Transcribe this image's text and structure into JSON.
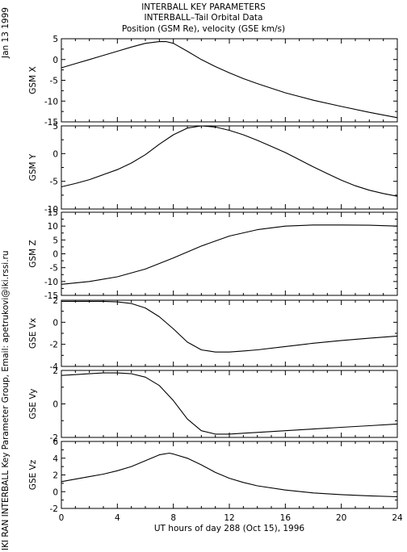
{
  "header": {
    "line1": "INTERBALL KEY PARAMETERS",
    "line2": "INTERBALL–Tail Orbital Data",
    "line3": "Position (GSM Re), velocity (GSE km/s)"
  },
  "side_labels": {
    "date": "Jan 13 1999",
    "credit": "IKI RAN INTERBALL Key Parameter Group, Email: apetrukovi@iki.rssi.ru"
  },
  "chart_data": {
    "type": "line",
    "xlabel": "UT hours of day 288 (Oct 15), 1996",
    "xlim": [
      0,
      24
    ],
    "xticks": [
      0,
      4,
      8,
      12,
      16,
      20,
      24
    ],
    "panels": [
      {
        "ylabel": "GSM X",
        "ylim": [
          -15,
          5
        ],
        "yticks": [
          5,
          0,
          -5,
          -10,
          -15
        ],
        "x": [
          0,
          1,
          2,
          3,
          4,
          5,
          6,
          7,
          7.5,
          8,
          9,
          10,
          11,
          12,
          13,
          14,
          16,
          18,
          20,
          22,
          24
        ],
        "y": [
          -2.0,
          -1.0,
          0.0,
          1.0,
          2.0,
          3.0,
          3.9,
          4.3,
          4.3,
          3.9,
          2.0,
          0.0,
          -1.7,
          -3.2,
          -4.6,
          -5.8,
          -8.0,
          -9.8,
          -11.3,
          -12.7,
          -14.0
        ]
      },
      {
        "ylabel": "GSM Y",
        "ylim": [
          -10,
          5
        ],
        "yticks": [
          5,
          0,
          -5,
          -10
        ],
        "x": [
          0,
          1,
          2,
          3,
          4,
          5,
          6,
          7,
          8,
          9,
          10,
          11,
          12,
          13,
          14,
          15,
          16,
          17,
          18,
          19,
          20,
          21,
          22,
          23,
          24
        ],
        "y": [
          -6.0,
          -5.4,
          -4.7,
          -3.8,
          -2.9,
          -1.7,
          -0.2,
          1.7,
          3.4,
          4.6,
          5.0,
          4.8,
          4.2,
          3.4,
          2.4,
          1.3,
          0.2,
          -1.1,
          -2.4,
          -3.6,
          -4.8,
          -5.8,
          -6.6,
          -7.2,
          -7.7
        ]
      },
      {
        "ylabel": "GSM Z",
        "ylim": [
          -15,
          15
        ],
        "yticks": [
          15,
          10,
          5,
          0,
          -5,
          -10,
          -15
        ],
        "x": [
          0,
          2,
          4,
          6,
          8,
          10,
          12,
          14,
          16,
          18,
          20,
          22,
          24
        ],
        "y": [
          -11.0,
          -10.0,
          -8.3,
          -5.5,
          -1.5,
          2.8,
          6.4,
          8.7,
          10.0,
          10.4,
          10.4,
          10.3,
          10.0
        ]
      },
      {
        "ylabel": "GSE Vx",
        "ylim": [
          -4,
          2
        ],
        "yticks": [
          2,
          0,
          -2,
          -4
        ],
        "x": [
          0,
          1,
          2,
          3,
          4,
          5,
          6,
          7,
          8,
          9,
          10,
          11,
          12,
          13,
          14,
          16,
          18,
          20,
          22,
          24
        ],
        "y": [
          1.9,
          1.9,
          1.9,
          1.9,
          1.85,
          1.7,
          1.3,
          0.5,
          -0.6,
          -1.8,
          -2.5,
          -2.7,
          -2.7,
          -2.6,
          -2.5,
          -2.2,
          -1.9,
          -1.65,
          -1.45,
          -1.25
        ]
      },
      {
        "ylabel": "GSE Vy",
        "ylim": [
          -2,
          2
        ],
        "yticks": [
          2,
          0,
          -2
        ],
        "x": [
          0,
          1,
          2,
          3,
          4,
          5,
          6,
          7,
          8,
          9,
          10,
          11,
          12,
          13,
          14,
          16,
          18,
          20,
          22,
          24
        ],
        "y": [
          1.7,
          1.75,
          1.8,
          1.85,
          1.85,
          1.8,
          1.6,
          1.1,
          0.2,
          -0.9,
          -1.6,
          -1.8,
          -1.8,
          -1.75,
          -1.7,
          -1.6,
          -1.5,
          -1.4,
          -1.3,
          -1.2
        ]
      },
      {
        "ylabel": "GSE Vz",
        "ylim": [
          -2,
          6
        ],
        "yticks": [
          6,
          4,
          2,
          0,
          -2
        ],
        "x": [
          0,
          1,
          2,
          3,
          4,
          5,
          6,
          7,
          7.7,
          8,
          9,
          10,
          11,
          12,
          13,
          14,
          16,
          18,
          20,
          22,
          24
        ],
        "y": [
          1.2,
          1.5,
          1.8,
          2.1,
          2.5,
          3.0,
          3.7,
          4.4,
          4.6,
          4.5,
          4.0,
          3.2,
          2.3,
          1.6,
          1.1,
          0.7,
          0.2,
          -0.15,
          -0.35,
          -0.5,
          -0.6
        ]
      }
    ]
  }
}
